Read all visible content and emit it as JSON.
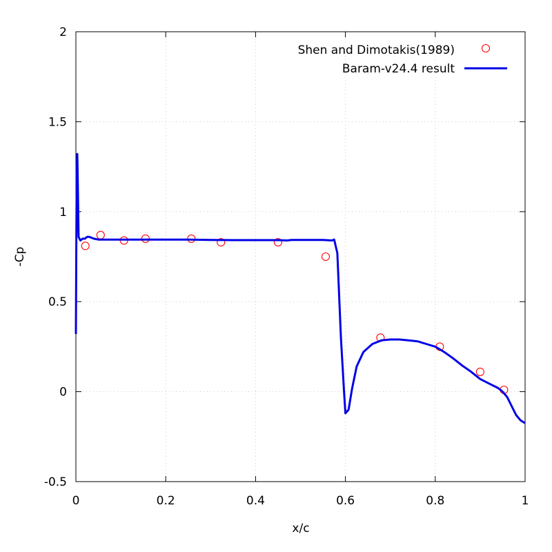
{
  "chart_data": {
    "type": "line",
    "xlabel": "x/c",
    "ylabel": "-Cp",
    "xlim": [
      0,
      1
    ],
    "ylim": [
      -0.5,
      2
    ],
    "xticks": [
      {
        "value": 0,
        "label": "0"
      },
      {
        "value": 0.2,
        "label": "0.2"
      },
      {
        "value": 0.4,
        "label": "0.4"
      },
      {
        "value": 0.6,
        "label": "0.6"
      },
      {
        "value": 0.8,
        "label": "0.8"
      },
      {
        "value": 1,
        "label": "1"
      }
    ],
    "yticks": [
      {
        "value": -0.5,
        "label": "-0.5"
      },
      {
        "value": 0,
        "label": "0"
      },
      {
        "value": 0.5,
        "label": "0.5"
      },
      {
        "value": 1,
        "label": "1"
      },
      {
        "value": 1.5,
        "label": "1.5"
      },
      {
        "value": 2,
        "label": "2"
      }
    ],
    "grid": true,
    "legend_position": "top-right",
    "series": [
      {
        "name": "Shen and Dimotakis(1989)",
        "style": "scatter",
        "marker": "open-circle",
        "color": "#ff0000",
        "x": [
          0.021,
          0.055,
          0.107,
          0.155,
          0.257,
          0.323,
          0.45,
          0.556,
          0.678,
          0.81,
          0.9,
          0.953
        ],
        "y": [
          0.81,
          0.87,
          0.84,
          0.85,
          0.85,
          0.83,
          0.83,
          0.75,
          0.3,
          0.25,
          0.11,
          0.01
        ]
      },
      {
        "name": "Baram-v24.4 result",
        "style": "line",
        "color": "#0000e6",
        "x": [
          0.0,
          0.001,
          0.002,
          0.003,
          0.004,
          0.006,
          0.01,
          0.015,
          0.02,
          0.025,
          0.03,
          0.035,
          0.04,
          0.05,
          0.07,
          0.1,
          0.15,
          0.2,
          0.25,
          0.3,
          0.35,
          0.4,
          0.45,
          0.47,
          0.48,
          0.5,
          0.55,
          0.57,
          0.575,
          0.582,
          0.59,
          0.597,
          0.6,
          0.607,
          0.615,
          0.625,
          0.64,
          0.66,
          0.68,
          0.7,
          0.72,
          0.74,
          0.76,
          0.78,
          0.8,
          0.82,
          0.84,
          0.86,
          0.88,
          0.9,
          0.92,
          0.94,
          0.95,
          0.96,
          0.97,
          0.98,
          0.99,
          1.0
        ],
        "y": [
          0.32,
          0.9,
          1.25,
          1.32,
          1.2,
          0.86,
          0.84,
          0.85,
          0.85,
          0.86,
          0.86,
          0.855,
          0.85,
          0.845,
          0.845,
          0.845,
          0.845,
          0.845,
          0.845,
          0.843,
          0.842,
          0.842,
          0.842,
          0.84,
          0.843,
          0.843,
          0.843,
          0.84,
          0.845,
          0.77,
          0.3,
          0.0,
          -0.12,
          -0.1,
          0.02,
          0.14,
          0.22,
          0.265,
          0.285,
          0.29,
          0.29,
          0.285,
          0.28,
          0.265,
          0.25,
          0.22,
          0.185,
          0.145,
          0.11,
          0.07,
          0.045,
          0.02,
          0.0,
          -0.03,
          -0.08,
          -0.13,
          -0.16,
          -0.175
        ]
      }
    ]
  }
}
